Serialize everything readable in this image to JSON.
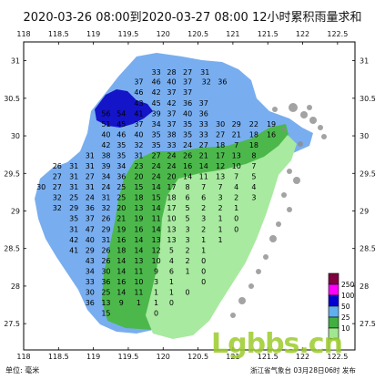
{
  "title": "2020-03-26 08:00到2020-03-27 08:00 12小时累积雨量求和",
  "x_ticks": [
    "118",
    "118.5",
    "119",
    "119.5",
    "120",
    "120.5",
    "121",
    "121.5",
    "122",
    "122.5"
  ],
  "y_ticks": [
    "31",
    "30.5",
    "30",
    "29.5",
    "29",
    "28.5",
    "28",
    "27.5"
  ],
  "unit": "单位: 毫米",
  "source": "浙江省气象台 03月28日06时 发布",
  "watermark": "Lgbbs.cn",
  "legend": {
    "labels": [
      "250",
      "100",
      "50",
      "25",
      "10"
    ],
    "colors": [
      "#800040",
      "#ff00ff",
      "#0000d0",
      "#60b0f0",
      "#40b040",
      "#a0e890",
      "#ffffff"
    ]
  },
  "colors": {
    "blue_zone": "#78aef0",
    "dark_blue": "#1414c8",
    "green_zone": "#4cb84c",
    "light_green": "#a8eaa0",
    "sea": "#ffffff",
    "coast": "#8c8c8c"
  },
  "values": [
    {
      "v": "33",
      "lon": 119.9,
      "lat": 30.85
    },
    {
      "v": "28",
      "lon": 120.12,
      "lat": 30.85
    },
    {
      "v": "27",
      "lon": 120.35,
      "lat": 30.85
    },
    {
      "v": "31",
      "lon": 120.6,
      "lat": 30.85
    },
    {
      "v": "37",
      "lon": 119.65,
      "lat": 30.72
    },
    {
      "v": "46",
      "lon": 119.9,
      "lat": 30.72
    },
    {
      "v": "40",
      "lon": 120.12,
      "lat": 30.72
    },
    {
      "v": "37",
      "lon": 120.35,
      "lat": 30.72
    },
    {
      "v": "32",
      "lon": 120.62,
      "lat": 30.72
    },
    {
      "v": "36",
      "lon": 120.85,
      "lat": 30.72
    },
    {
      "v": "46",
      "lon": 119.65,
      "lat": 30.58
    },
    {
      "v": "42",
      "lon": 119.9,
      "lat": 30.58
    },
    {
      "v": "37",
      "lon": 120.12,
      "lat": 30.58
    },
    {
      "v": "37",
      "lon": 120.35,
      "lat": 30.58
    },
    {
      "v": "43",
      "lon": 119.65,
      "lat": 30.44
    },
    {
      "v": "45",
      "lon": 119.9,
      "lat": 30.44
    },
    {
      "v": "42",
      "lon": 120.12,
      "lat": 30.44
    },
    {
      "v": "36",
      "lon": 120.35,
      "lat": 30.44
    },
    {
      "v": "37",
      "lon": 120.58,
      "lat": 30.44
    },
    {
      "v": "56",
      "lon": 119.18,
      "lat": 30.3
    },
    {
      "v": "54",
      "lon": 119.4,
      "lat": 30.3
    },
    {
      "v": "41",
      "lon": 119.65,
      "lat": 30.3
    },
    {
      "v": "39",
      "lon": 119.9,
      "lat": 30.3
    },
    {
      "v": "37",
      "lon": 120.12,
      "lat": 30.3
    },
    {
      "v": "40",
      "lon": 120.35,
      "lat": 30.3
    },
    {
      "v": "36",
      "lon": 120.58,
      "lat": 30.3
    },
    {
      "v": "51",
      "lon": 119.18,
      "lat": 30.16
    },
    {
      "v": "45",
      "lon": 119.4,
      "lat": 30.16
    },
    {
      "v": "37",
      "lon": 119.65,
      "lat": 30.16
    },
    {
      "v": "34",
      "lon": 119.9,
      "lat": 30.16
    },
    {
      "v": "37",
      "lon": 120.12,
      "lat": 30.16
    },
    {
      "v": "35",
      "lon": 120.35,
      "lat": 30.16
    },
    {
      "v": "33",
      "lon": 120.58,
      "lat": 30.16
    },
    {
      "v": "30",
      "lon": 120.82,
      "lat": 30.16
    },
    {
      "v": "29",
      "lon": 121.05,
      "lat": 30.16
    },
    {
      "v": "22",
      "lon": 121.3,
      "lat": 30.16
    },
    {
      "v": "19",
      "lon": 121.55,
      "lat": 30.16
    },
    {
      "v": "40",
      "lon": 119.18,
      "lat": 30.02
    },
    {
      "v": "46",
      "lon": 119.4,
      "lat": 30.02
    },
    {
      "v": "40",
      "lon": 119.65,
      "lat": 30.02
    },
    {
      "v": "35",
      "lon": 119.9,
      "lat": 30.02
    },
    {
      "v": "38",
      "lon": 120.12,
      "lat": 30.02
    },
    {
      "v": "35",
      "lon": 120.35,
      "lat": 30.02
    },
    {
      "v": "33",
      "lon": 120.58,
      "lat": 30.02
    },
    {
      "v": "27",
      "lon": 120.82,
      "lat": 30.02
    },
    {
      "v": "21",
      "lon": 121.05,
      "lat": 30.02
    },
    {
      "v": "18",
      "lon": 121.3,
      "lat": 30.02
    },
    {
      "v": "16",
      "lon": 121.55,
      "lat": 30.02
    },
    {
      "v": "42",
      "lon": 119.18,
      "lat": 29.88
    },
    {
      "v": "35",
      "lon": 119.4,
      "lat": 29.88
    },
    {
      "v": "32",
      "lon": 119.65,
      "lat": 29.88
    },
    {
      "v": "35",
      "lon": 119.9,
      "lat": 29.88
    },
    {
      "v": "33",
      "lon": 120.12,
      "lat": 29.88
    },
    {
      "v": "24",
      "lon": 120.35,
      "lat": 29.88
    },
    {
      "v": "27",
      "lon": 120.58,
      "lat": 29.88
    },
    {
      "v": "18",
      "lon": 120.82,
      "lat": 29.88
    },
    {
      "v": "7",
      "lon": 121.05,
      "lat": 29.88
    },
    {
      "v": "18",
      "lon": 121.3,
      "lat": 29.88
    },
    {
      "v": "31",
      "lon": 118.95,
      "lat": 29.74
    },
    {
      "v": "38",
      "lon": 119.18,
      "lat": 29.74
    },
    {
      "v": "35",
      "lon": 119.4,
      "lat": 29.74
    },
    {
      "v": "31",
      "lon": 119.65,
      "lat": 29.74
    },
    {
      "v": "27",
      "lon": 119.9,
      "lat": 29.74
    },
    {
      "v": "24",
      "lon": 120.12,
      "lat": 29.74
    },
    {
      "v": "26",
      "lon": 120.35,
      "lat": 29.74
    },
    {
      "v": "21",
      "lon": 120.58,
      "lat": 29.74
    },
    {
      "v": "17",
      "lon": 120.82,
      "lat": 29.74
    },
    {
      "v": "13",
      "lon": 121.05,
      "lat": 29.74
    },
    {
      "v": "8",
      "lon": 121.3,
      "lat": 29.74
    },
    {
      "v": "26",
      "lon": 118.48,
      "lat": 29.6
    },
    {
      "v": "31",
      "lon": 118.72,
      "lat": 29.6
    },
    {
      "v": "31",
      "lon": 118.95,
      "lat": 29.6
    },
    {
      "v": "39",
      "lon": 119.18,
      "lat": 29.6
    },
    {
      "v": "34",
      "lon": 119.4,
      "lat": 29.6
    },
    {
      "v": "23",
      "lon": 119.65,
      "lat": 29.6
    },
    {
      "v": "24",
      "lon": 119.9,
      "lat": 29.6
    },
    {
      "v": "24",
      "lon": 120.12,
      "lat": 29.6
    },
    {
      "v": "16",
      "lon": 120.35,
      "lat": 29.6
    },
    {
      "v": "14",
      "lon": 120.58,
      "lat": 29.6
    },
    {
      "v": "12",
      "lon": 120.82,
      "lat": 29.6
    },
    {
      "v": "10",
      "lon": 121.05,
      "lat": 29.6
    },
    {
      "v": "7",
      "lon": 121.3,
      "lat": 29.6
    },
    {
      "v": "27",
      "lon": 118.48,
      "lat": 29.46
    },
    {
      "v": "31",
      "lon": 118.72,
      "lat": 29.46
    },
    {
      "v": "27",
      "lon": 118.95,
      "lat": 29.46
    },
    {
      "v": "34",
      "lon": 119.18,
      "lat": 29.46
    },
    {
      "v": "36",
      "lon": 119.4,
      "lat": 29.46
    },
    {
      "v": "20",
      "lon": 119.65,
      "lat": 29.46
    },
    {
      "v": "24",
      "lon": 119.9,
      "lat": 29.46
    },
    {
      "v": "20",
      "lon": 120.12,
      "lat": 29.46
    },
    {
      "v": "14",
      "lon": 120.35,
      "lat": 29.46
    },
    {
      "v": "11",
      "lon": 120.58,
      "lat": 29.46
    },
    {
      "v": "13",
      "lon": 120.82,
      "lat": 29.46
    },
    {
      "v": "7",
      "lon": 121.05,
      "lat": 29.46
    },
    {
      "v": "5",
      "lon": 121.3,
      "lat": 29.46
    },
    {
      "v": "30",
      "lon": 118.25,
      "lat": 29.32
    },
    {
      "v": "27",
      "lon": 118.48,
      "lat": 29.32
    },
    {
      "v": "31",
      "lon": 118.72,
      "lat": 29.32
    },
    {
      "v": "31",
      "lon": 118.95,
      "lat": 29.32
    },
    {
      "v": "24",
      "lon": 119.18,
      "lat": 29.32
    },
    {
      "v": "25",
      "lon": 119.4,
      "lat": 29.32
    },
    {
      "v": "15",
      "lon": 119.65,
      "lat": 29.32
    },
    {
      "v": "14",
      "lon": 119.9,
      "lat": 29.32
    },
    {
      "v": "17",
      "lon": 120.12,
      "lat": 29.32
    },
    {
      "v": "8",
      "lon": 120.35,
      "lat": 29.32
    },
    {
      "v": "7",
      "lon": 120.58,
      "lat": 29.32
    },
    {
      "v": "7",
      "lon": 120.82,
      "lat": 29.32
    },
    {
      "v": "4",
      "lon": 121.05,
      "lat": 29.32
    },
    {
      "v": "4",
      "lon": 121.3,
      "lat": 29.32
    },
    {
      "v": "32",
      "lon": 118.48,
      "lat": 29.18
    },
    {
      "v": "25",
      "lon": 118.72,
      "lat": 29.18
    },
    {
      "v": "24",
      "lon": 118.95,
      "lat": 29.18
    },
    {
      "v": "31",
      "lon": 119.18,
      "lat": 29.18
    },
    {
      "v": "25",
      "lon": 119.4,
      "lat": 29.18
    },
    {
      "v": "18",
      "lon": 119.65,
      "lat": 29.18
    },
    {
      "v": "15",
      "lon": 119.9,
      "lat": 29.18
    },
    {
      "v": "18",
      "lon": 120.12,
      "lat": 29.18
    },
    {
      "v": "6",
      "lon": 120.35,
      "lat": 29.18
    },
    {
      "v": "6",
      "lon": 120.58,
      "lat": 29.18
    },
    {
      "v": "3",
      "lon": 120.82,
      "lat": 29.18
    },
    {
      "v": "2",
      "lon": 121.05,
      "lat": 29.18
    },
    {
      "v": "3",
      "lon": 121.3,
      "lat": 29.18
    },
    {
      "v": "32",
      "lon": 118.48,
      "lat": 29.04
    },
    {
      "v": "29",
      "lon": 118.72,
      "lat": 29.04
    },
    {
      "v": "36",
      "lon": 118.95,
      "lat": 29.04
    },
    {
      "v": "32",
      "lon": 119.18,
      "lat": 29.04
    },
    {
      "v": "20",
      "lon": 119.4,
      "lat": 29.04
    },
    {
      "v": "13",
      "lon": 119.65,
      "lat": 29.04
    },
    {
      "v": "14",
      "lon": 119.9,
      "lat": 29.04
    },
    {
      "v": "17",
      "lon": 120.12,
      "lat": 29.04
    },
    {
      "v": "5",
      "lon": 120.35,
      "lat": 29.04
    },
    {
      "v": "2",
      "lon": 120.58,
      "lat": 29.04
    },
    {
      "v": "2",
      "lon": 120.82,
      "lat": 29.04
    },
    {
      "v": "1",
      "lon": 121.05,
      "lat": 29.04
    },
    {
      "v": "35",
      "lon": 118.72,
      "lat": 28.9
    },
    {
      "v": "37",
      "lon": 118.95,
      "lat": 28.9
    },
    {
      "v": "26",
      "lon": 119.18,
      "lat": 28.9
    },
    {
      "v": "21",
      "lon": 119.4,
      "lat": 28.9
    },
    {
      "v": "19",
      "lon": 119.65,
      "lat": 28.9
    },
    {
      "v": "11",
      "lon": 119.9,
      "lat": 28.9
    },
    {
      "v": "10",
      "lon": 120.12,
      "lat": 28.9
    },
    {
      "v": "5",
      "lon": 120.35,
      "lat": 28.9
    },
    {
      "v": "3",
      "lon": 120.58,
      "lat": 28.9
    },
    {
      "v": "1",
      "lon": 120.82,
      "lat": 28.9
    },
    {
      "v": "0",
      "lon": 121.05,
      "lat": 28.9
    },
    {
      "v": "31",
      "lon": 118.72,
      "lat": 28.76
    },
    {
      "v": "47",
      "lon": 118.95,
      "lat": 28.76
    },
    {
      "v": "29",
      "lon": 119.18,
      "lat": 28.76
    },
    {
      "v": "19",
      "lon": 119.4,
      "lat": 28.76
    },
    {
      "v": "16",
      "lon": 119.65,
      "lat": 28.76
    },
    {
      "v": "14",
      "lon": 119.9,
      "lat": 28.76
    },
    {
      "v": "13",
      "lon": 120.12,
      "lat": 28.76
    },
    {
      "v": "3",
      "lon": 120.35,
      "lat": 28.76
    },
    {
      "v": "2",
      "lon": 120.58,
      "lat": 28.76
    },
    {
      "v": "1",
      "lon": 120.82,
      "lat": 28.76
    },
    {
      "v": "0",
      "lon": 121.05,
      "lat": 28.76
    },
    {
      "v": "42",
      "lon": 118.72,
      "lat": 28.62
    },
    {
      "v": "40",
      "lon": 118.95,
      "lat": 28.62
    },
    {
      "v": "31",
      "lon": 119.18,
      "lat": 28.62
    },
    {
      "v": "16",
      "lon": 119.4,
      "lat": 28.62
    },
    {
      "v": "14",
      "lon": 119.65,
      "lat": 28.62
    },
    {
      "v": "13",
      "lon": 119.9,
      "lat": 28.62
    },
    {
      "v": "13",
      "lon": 120.12,
      "lat": 28.62
    },
    {
      "v": "3",
      "lon": 120.35,
      "lat": 28.62
    },
    {
      "v": "1",
      "lon": 120.58,
      "lat": 28.62
    },
    {
      "v": "1",
      "lon": 120.82,
      "lat": 28.62
    },
    {
      "v": "41",
      "lon": 118.72,
      "lat": 28.48
    },
    {
      "v": "29",
      "lon": 118.95,
      "lat": 28.48
    },
    {
      "v": "26",
      "lon": 119.18,
      "lat": 28.48
    },
    {
      "v": "18",
      "lon": 119.4,
      "lat": 28.48
    },
    {
      "v": "14",
      "lon": 119.65,
      "lat": 28.48
    },
    {
      "v": "12",
      "lon": 119.9,
      "lat": 28.48
    },
    {
      "v": "5",
      "lon": 120.12,
      "lat": 28.48
    },
    {
      "v": "2",
      "lon": 120.35,
      "lat": 28.48
    },
    {
      "v": "1",
      "lon": 120.58,
      "lat": 28.48
    },
    {
      "v": "43",
      "lon": 118.95,
      "lat": 28.34
    },
    {
      "v": "26",
      "lon": 119.18,
      "lat": 28.34
    },
    {
      "v": "14",
      "lon": 119.4,
      "lat": 28.34
    },
    {
      "v": "13",
      "lon": 119.65,
      "lat": 28.34
    },
    {
      "v": "10",
      "lon": 119.9,
      "lat": 28.34
    },
    {
      "v": "4",
      "lon": 120.12,
      "lat": 28.34
    },
    {
      "v": "2",
      "lon": 120.35,
      "lat": 28.34
    },
    {
      "v": "0",
      "lon": 120.58,
      "lat": 28.34
    },
    {
      "v": "34",
      "lon": 118.95,
      "lat": 28.2
    },
    {
      "v": "30",
      "lon": 119.18,
      "lat": 28.2
    },
    {
      "v": "14",
      "lon": 119.4,
      "lat": 28.2
    },
    {
      "v": "11",
      "lon": 119.65,
      "lat": 28.2
    },
    {
      "v": "9",
      "lon": 119.9,
      "lat": 28.2
    },
    {
      "v": "6",
      "lon": 120.12,
      "lat": 28.2
    },
    {
      "v": "1",
      "lon": 120.35,
      "lat": 28.2
    },
    {
      "v": "0",
      "lon": 120.58,
      "lat": 28.2
    },
    {
      "v": "33",
      "lon": 118.95,
      "lat": 28.06
    },
    {
      "v": "36",
      "lon": 119.18,
      "lat": 28.06
    },
    {
      "v": "16",
      "lon": 119.4,
      "lat": 28.06
    },
    {
      "v": "10",
      "lon": 119.65,
      "lat": 28.06
    },
    {
      "v": "3",
      "lon": 119.9,
      "lat": 28.06
    },
    {
      "v": "1",
      "lon": 120.12,
      "lat": 28.06
    },
    {
      "v": "0",
      "lon": 120.58,
      "lat": 28.06
    },
    {
      "v": "30",
      "lon": 118.95,
      "lat": 27.92
    },
    {
      "v": "25",
      "lon": 119.18,
      "lat": 27.92
    },
    {
      "v": "14",
      "lon": 119.4,
      "lat": 27.92
    },
    {
      "v": "11",
      "lon": 119.65,
      "lat": 27.92
    },
    {
      "v": "1",
      "lon": 119.9,
      "lat": 27.92
    },
    {
      "v": "1",
      "lon": 120.12,
      "lat": 27.92
    },
    {
      "v": "0",
      "lon": 120.35,
      "lat": 27.92
    },
    {
      "v": "36",
      "lon": 118.95,
      "lat": 27.78
    },
    {
      "v": "13",
      "lon": 119.18,
      "lat": 27.78
    },
    {
      "v": "9",
      "lon": 119.4,
      "lat": 27.78
    },
    {
      "v": "1",
      "lon": 119.65,
      "lat": 27.78
    },
    {
      "v": "1",
      "lon": 119.9,
      "lat": 27.78
    },
    {
      "v": "0",
      "lon": 120.12,
      "lat": 27.78
    },
    {
      "v": "15",
      "lon": 119.18,
      "lat": 27.64
    },
    {
      "v": "0",
      "lon": 119.9,
      "lat": 27.64
    }
  ]
}
